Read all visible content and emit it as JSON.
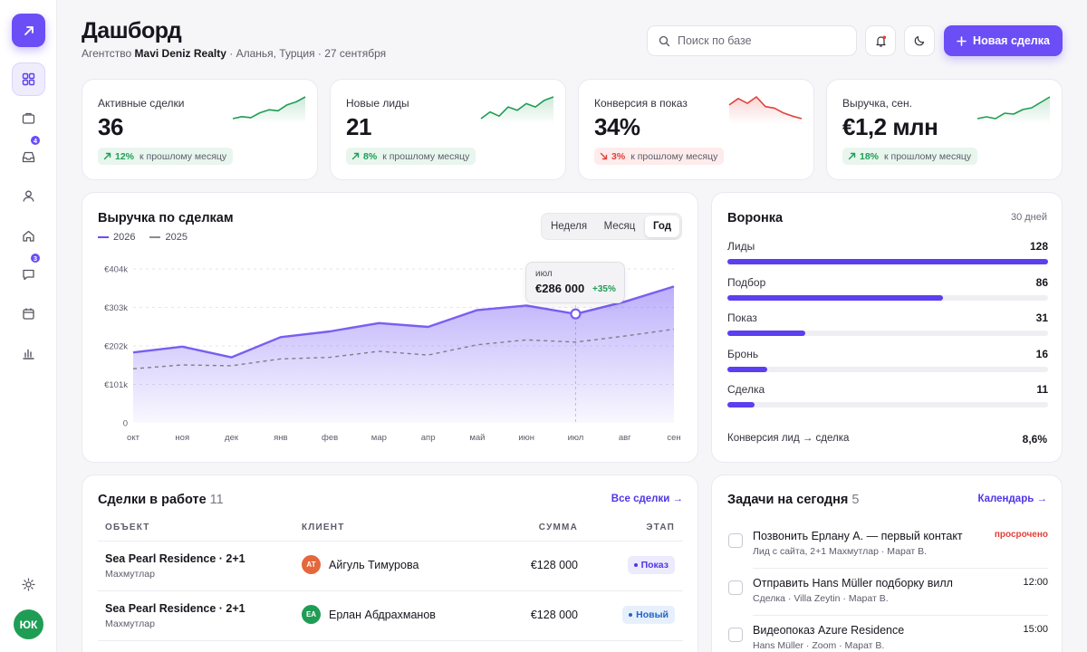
{
  "sidebar": {
    "items": [
      {
        "name": "dashboard",
        "icon": "grid-icon",
        "active": true,
        "badge": ""
      },
      {
        "name": "deals",
        "icon": "briefcase-icon",
        "badge": ""
      },
      {
        "name": "inbox",
        "icon": "inbox-icon",
        "badge": "4"
      },
      {
        "name": "clients",
        "icon": "user-icon",
        "badge": ""
      },
      {
        "name": "properties",
        "icon": "home-icon",
        "badge": ""
      },
      {
        "name": "messages",
        "icon": "chat-icon",
        "badge": "3"
      },
      {
        "name": "calendar",
        "icon": "calendar-icon",
        "badge": ""
      },
      {
        "name": "reports",
        "icon": "bar-chart-icon",
        "badge": ""
      }
    ],
    "avatar_initials": "ЮК"
  },
  "header": {
    "title": "Дашборд",
    "subtitle_prefix": "Агентство ",
    "agency": "Mavi Deniz Realty",
    "subtitle_suffix": " · Аланья, Турция · 27 сентября",
    "search_placeholder": "Поиск по базе",
    "new_deal_label": "Новая сделка"
  },
  "kpis": [
    {
      "label": "Активные сделки",
      "value": "36",
      "delta": "12%",
      "direction": "up",
      "note": "к прошлому месяцу",
      "spark": [
        10,
        12,
        11,
        16,
        19,
        18,
        24,
        27,
        32
      ]
    },
    {
      "label": "Новые лиды",
      "value": "21",
      "delta": "8%",
      "direction": "up",
      "note": "к прошлому месяцу",
      "spark": [
        12,
        20,
        15,
        26,
        22,
        30,
        26,
        34,
        38
      ]
    },
    {
      "label": "Конверсия в показ",
      "value": "34%",
      "delta": "3%",
      "direction": "down",
      "note": "к прошлому месяцу",
      "spark": [
        30,
        38,
        32,
        40,
        28,
        26,
        20,
        16,
        13
      ]
    },
    {
      "label": "Выручка, сен.",
      "value": "€1,2 млн",
      "delta": "18%",
      "direction": "up",
      "note": "к прошлому месяцу",
      "spark": [
        10,
        12,
        10,
        16,
        15,
        20,
        22,
        28,
        34
      ]
    }
  ],
  "revenue": {
    "title": "Выручка по сделкам",
    "periods": [
      "Неделя",
      "Месяц",
      "Год"
    ],
    "selected_period": "Год",
    "tooltip": {
      "label": "июл",
      "value": "€286 000",
      "delta": "+35%"
    }
  },
  "chart_data": {
    "type": "area",
    "categories": [
      "окт",
      "ноя",
      "дек",
      "янв",
      "фев",
      "мар",
      "апр",
      "май",
      "июн",
      "июл",
      "авг",
      "сен"
    ],
    "series": [
      {
        "name": "2026",
        "values": [
          185,
          200,
          172,
          225,
          240,
          262,
          252,
          296,
          308,
          286,
          318,
          358
        ],
        "style": "solid-area",
        "color": "#6b4ef6"
      },
      {
        "name": "2025",
        "values": [
          142,
          152,
          150,
          168,
          172,
          188,
          178,
          205,
          218,
          212,
          228,
          246
        ],
        "style": "dashed",
        "color": "#8b8b96"
      }
    ],
    "y_ticks": [
      "0",
      "€101k",
      "€202k",
      "€303k",
      "€404k"
    ],
    "ylim": [
      0,
      404
    ],
    "highlight_index": 9,
    "grid": true
  },
  "funnel": {
    "title": "Воронка",
    "period": "30 дней",
    "max": 128,
    "stages": [
      {
        "label": "Лиды",
        "value": 128
      },
      {
        "label": "Подбор",
        "value": 86
      },
      {
        "label": "Показ",
        "value": 31
      },
      {
        "label": "Бронь",
        "value": 16
      },
      {
        "label": "Сделка",
        "value": 11
      }
    ],
    "conversion_label": "Конверсия лид → сделка",
    "conversion_value": "8,6%"
  },
  "deals": {
    "title": "Сделки в работе",
    "count": "11",
    "link": "Все сделки →",
    "columns": [
      "ОБЪЕКТ",
      "КЛИЕНТ",
      "СУММА",
      "ЭТАП"
    ],
    "rows": [
      {
        "object": "Sea Pearl Residence · 2+1",
        "location": "Махмутлар",
        "initials": "АТ",
        "avatar_color": "#e5673c",
        "client": "Айгуль Тимурова",
        "sum": "€128 000",
        "stage": "Показ",
        "stage_type": "show"
      },
      {
        "object": "Sea Pearl Residence · 2+1",
        "location": "Махмутлар",
        "initials": "ЕА",
        "avatar_color": "#1f9d55",
        "client": "Ерлан Абдрахманов",
        "sum": "€128 000",
        "stage": "Новый",
        "stage_type": "new"
      }
    ]
  },
  "tasks": {
    "title": "Задачи на сегодня",
    "count": "5",
    "link": "Календарь →",
    "items": [
      {
        "title": "Позвонить Ерлану А. — первый контакт",
        "sub": "Лид с сайта, 2+1 Махмутлар · Марат В.",
        "time": "просрочено",
        "overdue": true
      },
      {
        "title": "Отправить Hans Müller подборку вилл",
        "sub": "Сделка · Villa Zeytin · Марат В.",
        "time": "12:00",
        "overdue": false
      },
      {
        "title": "Видеопоказ Azure Residence",
        "sub": "Hans Müller · Zoom · Марат В.",
        "time": "15:00",
        "overdue": false
      }
    ]
  }
}
